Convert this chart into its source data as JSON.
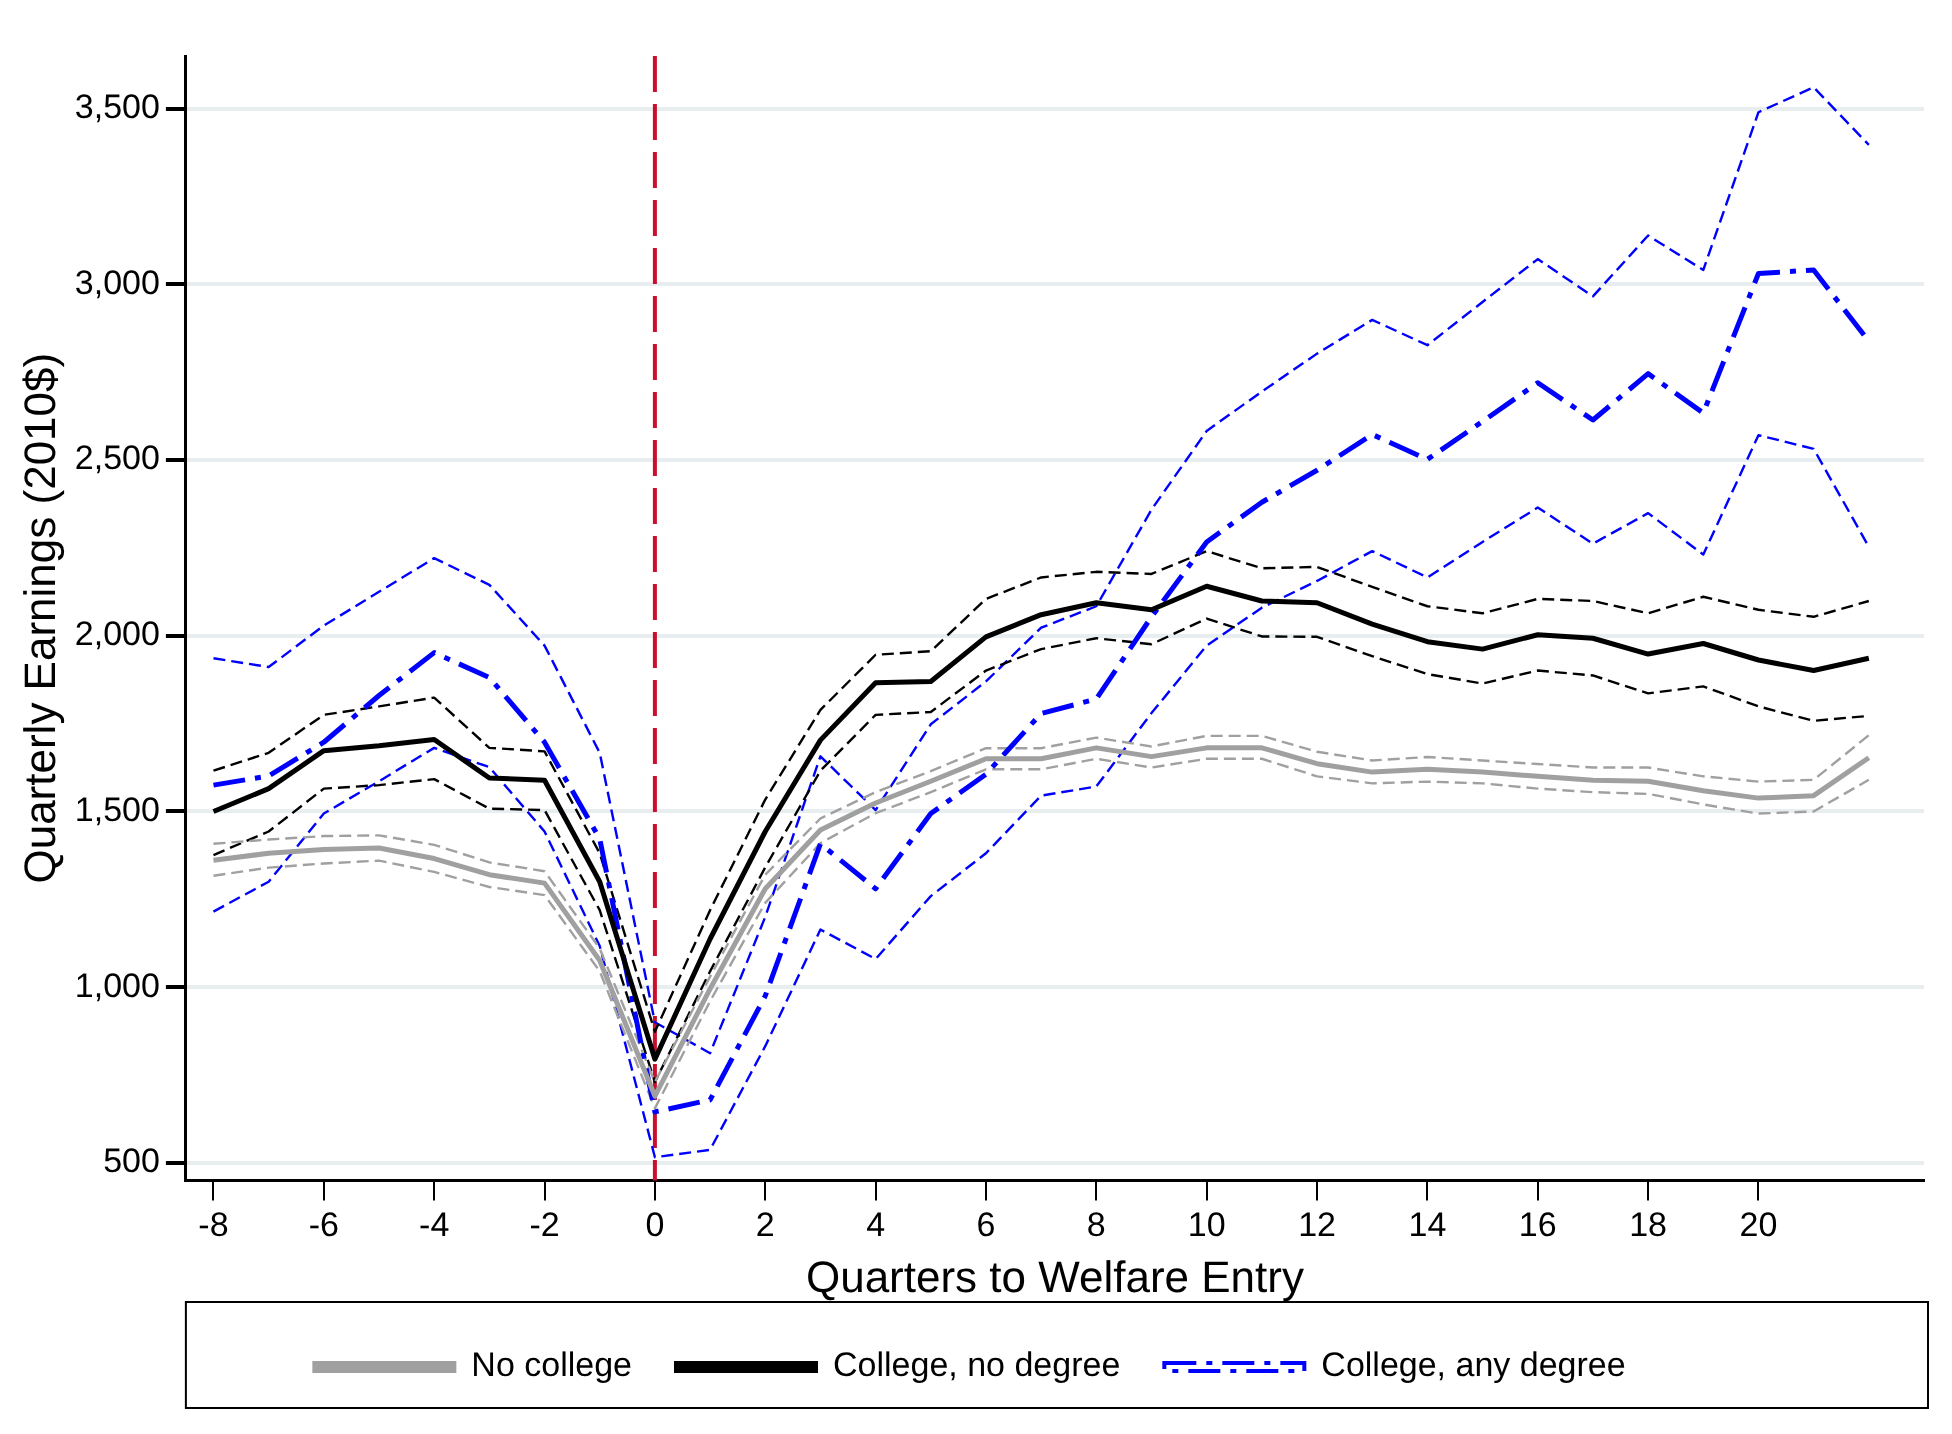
{
  "chart_data": {
    "type": "line",
    "xlabel": "Quarters to Welfare Entry",
    "ylabel": "Quarterly Earnings (2010$)",
    "xlim": [
      -8.5,
      23
    ],
    "xticks": [
      -8,
      -6,
      -4,
      -2,
      0,
      2,
      4,
      6,
      8,
      10,
      12,
      14,
      16,
      18,
      20
    ],
    "ylim": [
      450,
      3650
    ],
    "yticks": [
      {
        "value": 500,
        "label": "500"
      },
      {
        "value": 1000,
        "label": "1,000"
      },
      {
        "value": 1500,
        "label": "1,500"
      },
      {
        "value": 2000,
        "label": "2,000"
      },
      {
        "value": 2500,
        "label": "2,500"
      },
      {
        "value": 3000,
        "label": "3,000"
      },
      {
        "value": 3500,
        "label": "3,500"
      }
    ],
    "x": [
      -8,
      -7,
      -6,
      -5,
      -4,
      -3,
      -2,
      -1,
      0,
      1,
      2,
      3,
      4,
      5,
      6,
      7,
      8,
      9,
      10,
      11,
      12,
      13,
      14,
      15,
      16,
      17,
      18,
      19,
      20,
      21,
      22
    ],
    "grid": "y",
    "legend": "bottom",
    "marker": "none",
    "ref_lines": [
      {
        "axis": "x",
        "value": 0,
        "color": "#c8102e",
        "line_style": "dashed"
      }
    ],
    "series": [
      {
        "name": "No college",
        "color": "#a0a0a0",
        "line_style": "solid",
        "values": [
          1361,
          1381,
          1392,
          1396,
          1366,
          1320,
          1296,
          1076,
          690,
          995,
          1280,
          1447,
          1524,
          1586,
          1650,
          1650,
          1681,
          1656,
          1681,
          1681,
          1636,
          1612,
          1620,
          1612,
          1600,
          1589,
          1586,
          1559,
          1538,
          1545,
          1653
        ]
      },
      {
        "name": "College, no degree",
        "color": "#000000",
        "line_style": "solid",
        "values": [
          1500,
          1565,
          1673,
          1687,
          1705,
          1595,
          1589,
          1300,
          795,
          1137,
          1443,
          1703,
          1866,
          1870,
          1997,
          2060,
          2094,
          2074,
          2141,
          2099,
          2094,
          2033,
          1983,
          1962,
          2003,
          1993,
          1948,
          1978,
          1931,
          1901,
          1936
        ]
      },
      {
        "name": "College, any degree",
        "color": "#0000ff",
        "line_style": "dashdot",
        "values": [
          1575,
          1601,
          1697,
          1830,
          1952,
          1881,
          1697,
          1422,
          645,
          679,
          975,
          1408,
          1280,
          1494,
          1606,
          1779,
          1820,
          2054,
          2267,
          2380,
          2471,
          2573,
          2502,
          2610,
          2720,
          2614,
          2746,
          2634,
          3031,
          3041,
          2838
        ]
      },
      {
        "color": "#a0a0a0",
        "line_style": "dashed",
        "values": [
          1317,
          1340,
          1352,
          1360,
          1328,
          1285,
          1262,
          1045,
          655,
          960,
          1240,
          1410,
          1495,
          1555,
          1620,
          1620,
          1650,
          1625,
          1650,
          1650,
          1600,
          1580,
          1585,
          1580,
          1565,
          1555,
          1550,
          1520,
          1494,
          1500,
          1590
        ]
      },
      {
        "color": "#a0a0a0",
        "line_style": "dashed",
        "values": [
          1408,
          1420,
          1430,
          1432,
          1405,
          1355,
          1330,
          1110,
          730,
          1030,
          1320,
          1480,
          1555,
          1615,
          1680,
          1680,
          1710,
          1685,
          1715,
          1715,
          1670,
          1645,
          1655,
          1645,
          1635,
          1625,
          1625,
          1600,
          1585,
          1590,
          1717
        ]
      },
      {
        "color": "#000000",
        "line_style": "dashed",
        "values": [
          1376,
          1443,
          1565,
          1575,
          1592,
          1508,
          1504,
          1219,
          730,
          1045,
          1341,
          1616,
          1775,
          1783,
          1901,
          1962,
          1993,
          1976,
          2049,
          1998,
          1997,
          1942,
          1891,
          1864,
          1901,
          1887,
          1836,
          1856,
          1799,
          1758,
          1772
        ]
      },
      {
        "color": "#000000",
        "line_style": "dashed",
        "values": [
          1616,
          1667,
          1775,
          1799,
          1824,
          1681,
          1671,
          1381,
          873,
          1219,
          1534,
          1789,
          1946,
          1956,
          2105,
          2166,
          2182,
          2176,
          2241,
          2192,
          2196,
          2139,
          2084,
          2064,
          2105,
          2099,
          2064,
          2111,
          2074,
          2054,
          2099
        ]
      },
      {
        "color": "#0000ff",
        "line_style": "dashed",
        "values": [
          1215,
          1300,
          1494,
          1586,
          1681,
          1626,
          1443,
          1117,
          516,
          537,
          832,
          1164,
          1080,
          1259,
          1381,
          1545,
          1571,
          1780,
          1972,
          2080,
          2156,
          2241,
          2166,
          2267,
          2365,
          2262,
          2349,
          2231,
          2571,
          2532,
          2253
        ]
      },
      {
        "color": "#0000ff",
        "line_style": "dashed",
        "values": [
          1936,
          1911,
          2029,
          2125,
          2221,
          2145,
          1972,
          1667,
          900,
          812,
          1200,
          1657,
          1504,
          1748,
          1870,
          2023,
          2084,
          2359,
          2583,
          2695,
          2803,
          2899,
          2827,
          2950,
          3072,
          2966,
          3139,
          3041,
          3490,
          3561,
          3397
        ]
      }
    ]
  }
}
